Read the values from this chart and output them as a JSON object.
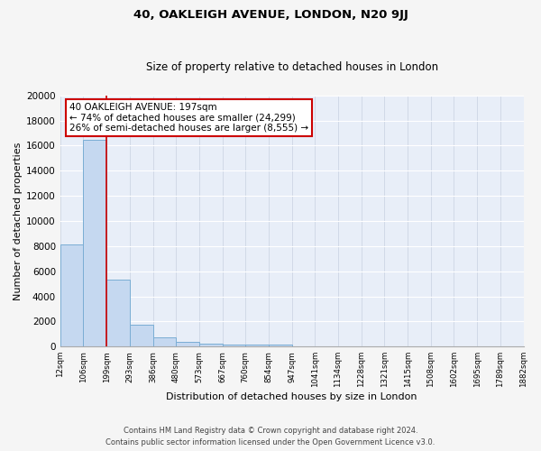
{
  "title": "40, OAKLEIGH AVENUE, LONDON, N20 9JJ",
  "subtitle": "Size of property relative to detached houses in London",
  "xlabel": "Distribution of detached houses by size in London",
  "ylabel": "Number of detached properties",
  "bar_values": [
    8100,
    16500,
    5300,
    1750,
    700,
    350,
    200,
    150,
    150,
    150,
    0,
    0,
    0,
    0,
    0,
    0,
    0,
    0,
    0,
    0
  ],
  "bin_labels": [
    "12sqm",
    "106sqm",
    "199sqm",
    "293sqm",
    "386sqm",
    "480sqm",
    "573sqm",
    "667sqm",
    "760sqm",
    "854sqm",
    "947sqm",
    "1041sqm",
    "1134sqm",
    "1228sqm",
    "1321sqm",
    "1415sqm",
    "1508sqm",
    "1602sqm",
    "1695sqm",
    "1789sqm",
    "1882sqm"
  ],
  "bar_color": "#c5d8f0",
  "bar_edge_color": "#7aadd4",
  "red_line_index": 2,
  "annotation_text": "40 OAKLEIGH AVENUE: 197sqm\n← 74% of detached houses are smaller (24,299)\n26% of semi-detached houses are larger (8,555) →",
  "annotation_box_color": "#ffffff",
  "annotation_border_color": "#cc0000",
  "ylim": [
    0,
    20000
  ],
  "yticks": [
    0,
    2000,
    4000,
    6000,
    8000,
    10000,
    12000,
    14000,
    16000,
    18000,
    20000
  ],
  "background_color": "#e8eef8",
  "fig_background_color": "#f5f5f5",
  "grid_color": "#d0d8e8",
  "footer_line1": "Contains HM Land Registry data © Crown copyright and database right 2024.",
  "footer_line2": "Contains public sector information licensed under the Open Government Licence v3.0."
}
